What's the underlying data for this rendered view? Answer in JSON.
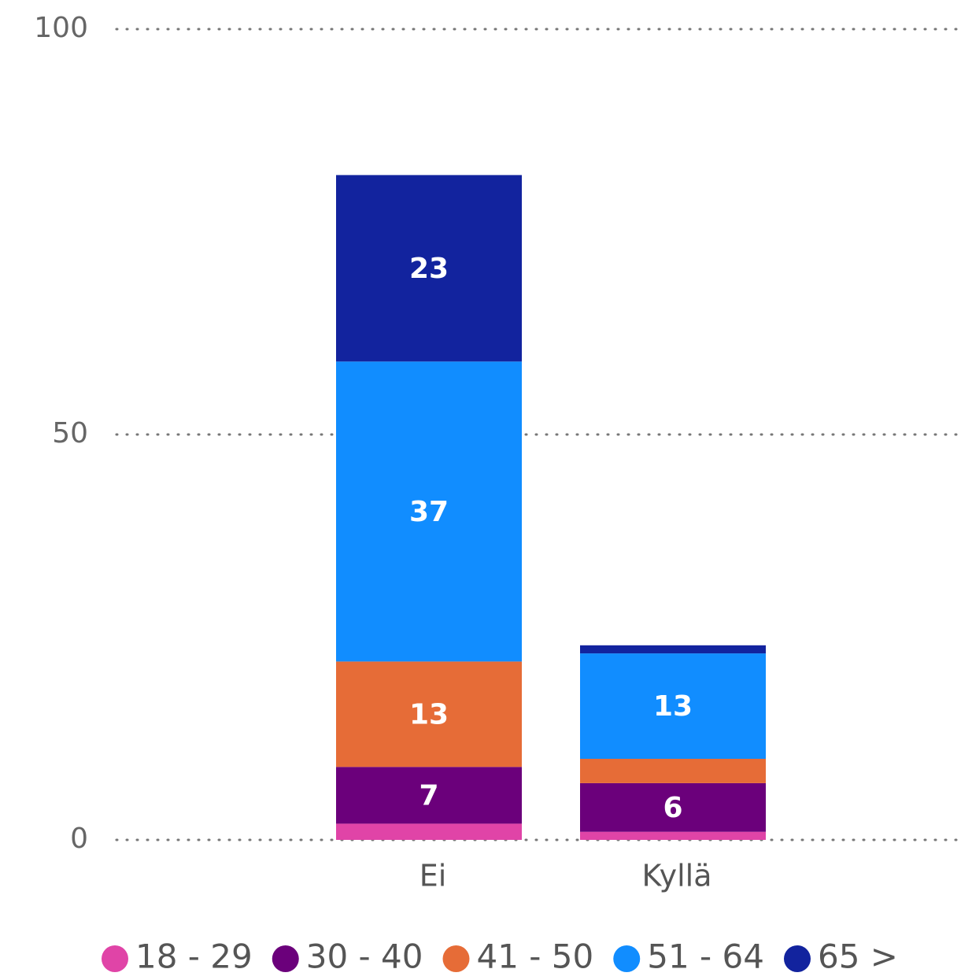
{
  "chart_data": {
    "type": "stacked_bar",
    "categories": [
      "Ei",
      "Kyllä"
    ],
    "series": [
      {
        "name": "18 - 29",
        "color": "#e044a7",
        "values": [
          2,
          1
        ]
      },
      {
        "name": "30 - 40",
        "color": "#6b007b",
        "values": [
          7,
          6
        ]
      },
      {
        "name": "41 - 50",
        "color": "#e66c37",
        "values": [
          13,
          3
        ]
      },
      {
        "name": "51 - 64",
        "color": "#118dff",
        "values": [
          37,
          13
        ]
      },
      {
        "name": "65 >",
        "color": "#12239e",
        "values": [
          23,
          1
        ]
      }
    ],
    "ylim": [
      0,
      100
    ],
    "yticks": [
      0,
      50,
      100
    ],
    "grid": true,
    "legend": "bottom"
  }
}
